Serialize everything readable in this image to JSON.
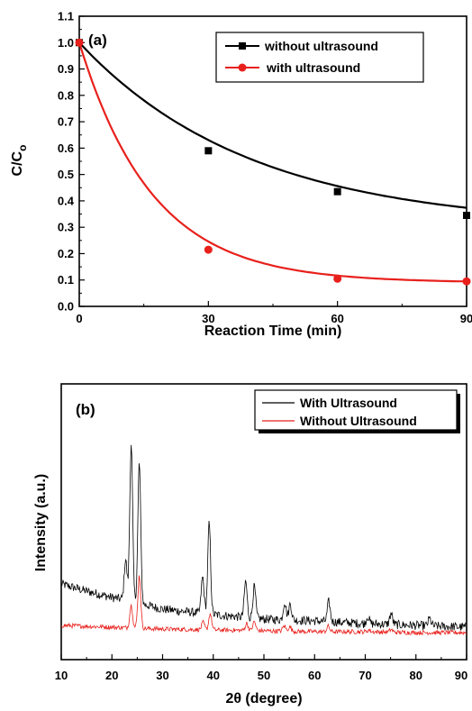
{
  "chart_data": [
    {
      "type": "line",
      "panel_label": "(a)",
      "xlabel": "Reaction Time (min)",
      "ylabel": "C/C",
      "ylabel_subscript": "o",
      "xlim": [
        0,
        90
      ],
      "ylim": [
        0.0,
        1.1
      ],
      "xticks": [
        0,
        30,
        60,
        90
      ],
      "yticks": [
        0.0,
        0.1,
        0.2,
        0.3,
        0.4,
        0.5,
        0.6,
        0.7,
        0.8,
        0.9,
        1.0,
        1.1
      ],
      "legend_position": "top-right",
      "series": [
        {
          "name": "without ultrasound",
          "color": "#000000",
          "marker": "square",
          "x": [
            0,
            30,
            60,
            90
          ],
          "y": [
            1.0,
            0.59,
            0.435,
            0.345
          ],
          "fit": {
            "model": "exponential decay",
            "y0": 0.3,
            "a": 0.7,
            "tau": 40
          }
        },
        {
          "name": "with ultrasound",
          "color": "#e8201c",
          "marker": "circle",
          "x": [
            0,
            30,
            60,
            90
          ],
          "y": [
            1.0,
            0.215,
            0.105,
            0.095
          ],
          "fit": {
            "model": "exponential decay",
            "y0": 0.09,
            "a": 0.91,
            "tau": 17
          }
        }
      ]
    },
    {
      "type": "line",
      "panel_label": "(b)",
      "xlabel": "2θ (degree)",
      "ylabel": "Intensity (a.u.)",
      "xlim": [
        10,
        90
      ],
      "xticks": [
        10,
        20,
        30,
        40,
        50,
        60,
        70,
        80,
        90
      ],
      "yticks": [],
      "legend_position": "top-right",
      "series": [
        {
          "name": "With Ultrasound",
          "color": "#000000",
          "baseline": {
            "x": [
              10,
              15,
              20,
              23,
              30,
              40,
              50,
              60,
              70,
              80,
              90
            ],
            "y": [
              60,
              52,
              45,
              42,
              32,
              26,
              21,
              19,
              16,
              14,
              12
            ]
          },
          "peaks": [
            {
              "x": 22.7,
              "h": 45
            },
            {
              "x": 23.8,
              "h": 175
            },
            {
              "x": 25.4,
              "h": 155
            },
            {
              "x": 37.9,
              "h": 40
            },
            {
              "x": 39.2,
              "h": 100
            },
            {
              "x": 46.4,
              "h": 40
            },
            {
              "x": 48.1,
              "h": 35
            },
            {
              "x": 54.1,
              "h": 20
            },
            {
              "x": 55.2,
              "h": 18
            },
            {
              "x": 62.8,
              "h": 22
            },
            {
              "x": 70.5,
              "h": 8
            },
            {
              "x": 75.1,
              "h": 12
            },
            {
              "x": 82.7,
              "h": 8
            }
          ]
        },
        {
          "name": "Without Ultrasound",
          "color": "#e8201c",
          "baseline": {
            "x": [
              10,
              20,
              30,
              40,
              50,
              60,
              70,
              80,
              90
            ],
            "y": [
              8,
              6,
              4,
              3,
              2,
              1,
              1,
              0,
              0
            ]
          },
          "peaks": [
            {
              "x": 23.8,
              "h": 25
            },
            {
              "x": 25.4,
              "h": 58
            },
            {
              "x": 38.0,
              "h": 8
            },
            {
              "x": 39.4,
              "h": 18
            },
            {
              "x": 46.6,
              "h": 8
            },
            {
              "x": 48.1,
              "h": 10
            },
            {
              "x": 54.0,
              "h": 6
            },
            {
              "x": 55.1,
              "h": 5
            },
            {
              "x": 62.7,
              "h": 6
            },
            {
              "x": 70.7,
              "h": 2
            },
            {
              "x": 75.1,
              "h": 3
            }
          ]
        }
      ]
    }
  ]
}
